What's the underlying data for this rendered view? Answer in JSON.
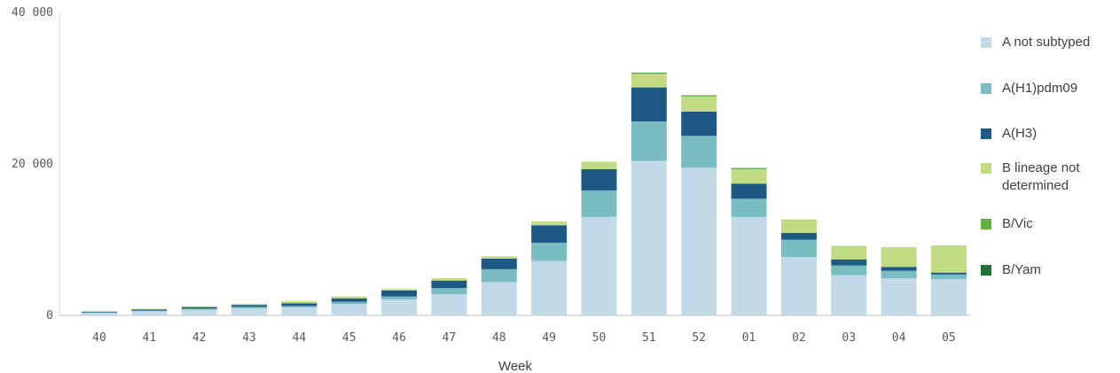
{
  "chart_data": {
    "type": "bar",
    "stacked": true,
    "xlabel": "Week",
    "ylabel": "",
    "ylim": [
      0,
      40000
    ],
    "yticks": [
      0,
      20000,
      40000
    ],
    "ytick_labels": [
      "0",
      "20 000",
      "40 000"
    ],
    "categories": [
      "40",
      "41",
      "42",
      "43",
      "44",
      "45",
      "46",
      "47",
      "48",
      "49",
      "50",
      "51",
      "52",
      "01",
      "02",
      "03",
      "04",
      "05"
    ],
    "series": [
      {
        "name": "A not subtyped",
        "color": "#c2d9e7",
        "values": [
          350,
          550,
          750,
          950,
          1050,
          1500,
          2100,
          2800,
          4400,
          7200,
          13000,
          20400,
          19500,
          13000,
          7700,
          5300,
          4900,
          4800
        ]
      },
      {
        "name": "A(H1)pdm09",
        "color": "#79bcc2",
        "values": [
          50,
          80,
          150,
          180,
          200,
          300,
          400,
          800,
          1700,
          2400,
          3500,
          5200,
          4200,
          2400,
          2300,
          1300,
          1000,
          600
        ]
      },
      {
        "name": "A(H3)",
        "color": "#1e5885",
        "values": [
          100,
          150,
          200,
          250,
          350,
          450,
          800,
          1000,
          1400,
          2300,
          2800,
          4500,
          3200,
          2000,
          900,
          800,
          500,
          250
        ]
      },
      {
        "name": "B lineage not determined",
        "color": "#c1db82",
        "values": [
          50,
          100,
          100,
          150,
          300,
          250,
          200,
          300,
          300,
          500,
          1000,
          1800,
          2000,
          1900,
          1700,
          1700,
          2500,
          3500
        ]
      },
      {
        "name": "B/Vic",
        "color": "#61b13a",
        "values": [
          0,
          0,
          0,
          0,
          0,
          0,
          0,
          0,
          0,
          0,
          0,
          100,
          100,
          100,
          50,
          50,
          50,
          50
        ]
      },
      {
        "name": "B/Yam",
        "color": "#1e7238",
        "values": [
          0,
          0,
          0,
          0,
          0,
          0,
          0,
          0,
          0,
          0,
          0,
          50,
          50,
          50,
          0,
          0,
          0,
          0
        ]
      }
    ],
    "grid": false,
    "legend_position": "right"
  }
}
